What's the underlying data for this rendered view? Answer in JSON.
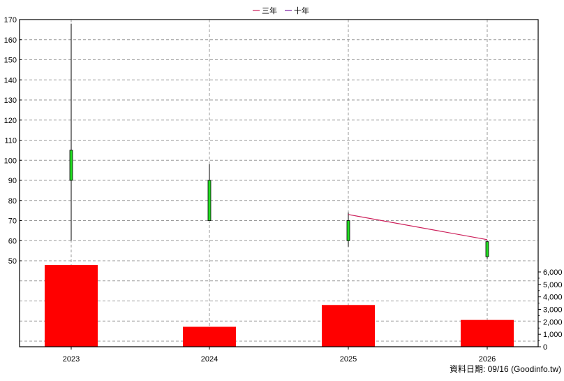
{
  "chart_data": {
    "type": "candlestick+bar+line",
    "legend": {
      "placement": "top-center",
      "items": [
        {
          "label": "三年",
          "color": "#cc1f5a"
        },
        {
          "label": "十年",
          "color": "#7a1fa2"
        }
      ]
    },
    "categories": [
      "2023",
      "2024",
      "2025",
      "2026"
    ],
    "price_axis": {
      "ticks": [
        "170",
        "160",
        "150",
        "140",
        "130",
        "120",
        "110",
        "100",
        "90",
        "80",
        "70",
        "60",
        "50"
      ],
      "range": [
        38,
        173
      ]
    },
    "volume_axis": {
      "ticks": [
        "6,000",
        "5,000",
        "4,000",
        "3,000",
        "2,000",
        "1,000",
        "0"
      ],
      "range": [
        0,
        6500
      ]
    },
    "candles": [
      {
        "x": "2023",
        "open": 90,
        "close": 105,
        "high": 168,
        "low": 60
      },
      {
        "x": "2024",
        "open": 70,
        "close": 90,
        "high": 98,
        "low": 70
      },
      {
        "x": "2025",
        "open": 60,
        "close": 70,
        "high": 74,
        "low": 57
      },
      {
        "x": "2026",
        "open": 52,
        "close": 59.5,
        "high": 60,
        "low": 51
      }
    ],
    "volume": [
      6700,
      1600,
      3350,
      2150
    ],
    "three_year_line": {
      "name": "三年",
      "points": [
        {
          "x": "2025",
          "y": 73
        },
        {
          "x": "2026",
          "y": 60.5
        }
      ]
    },
    "colors": {
      "candle_body": "#22dd22",
      "volume_bar": "#ff0000",
      "three_year": "#cc1f5a",
      "ten_year": "#7a1fa2",
      "grid": "#999999"
    }
  },
  "footer": {
    "label": "資料日期: 09/16  (Goodinfo.tw)"
  }
}
